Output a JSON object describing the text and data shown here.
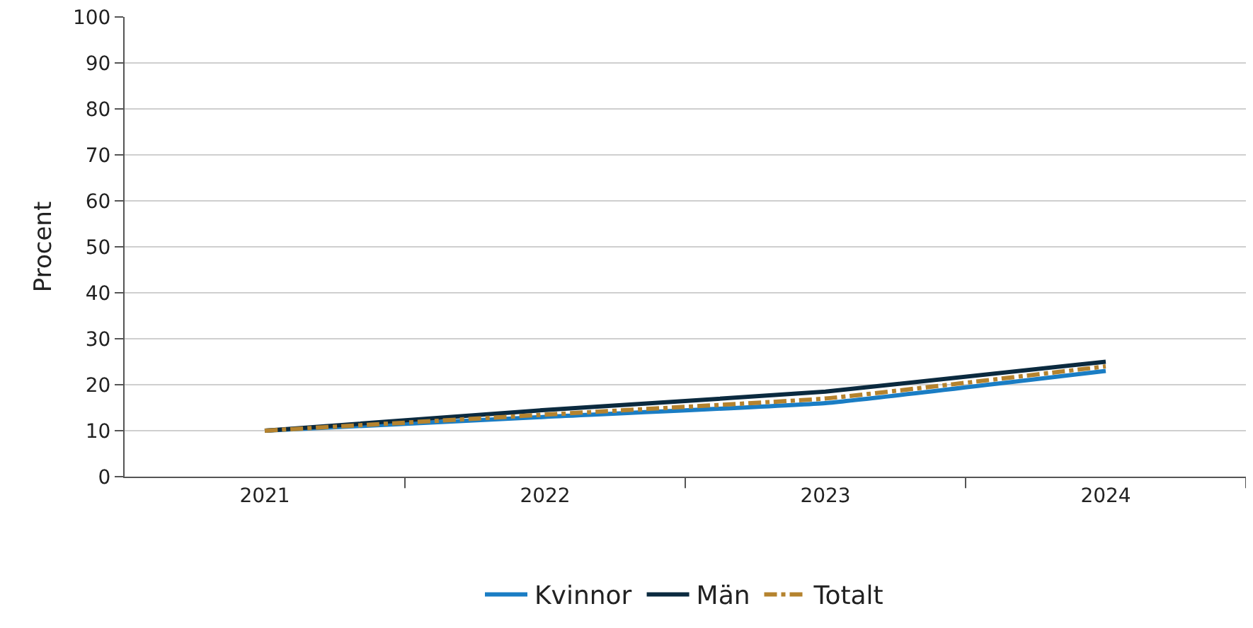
{
  "chart_data": {
    "type": "line",
    "ylabel": "Procent",
    "categories": [
      "2021",
      "2022",
      "2023",
      "2024"
    ],
    "series": [
      {
        "name": "Kvinnor",
        "color": "#1a7dc4",
        "values": [
          10,
          13,
          16,
          23
        ],
        "line_style": "solid"
      },
      {
        "name": "Män",
        "color": "#0b2a3f",
        "values": [
          10,
          14.5,
          18.5,
          25
        ],
        "line_style": "solid"
      },
      {
        "name": "Totalt",
        "color": "#b5832e",
        "values": [
          10,
          13.5,
          17,
          24
        ],
        "line_style": "dashdot"
      }
    ],
    "ylim": [
      0,
      100
    ],
    "yticks": [
      0,
      10,
      20,
      30,
      40,
      50,
      60,
      70,
      80,
      90,
      100
    ],
    "grid": "y",
    "legend": "bottom",
    "marker": "none"
  }
}
